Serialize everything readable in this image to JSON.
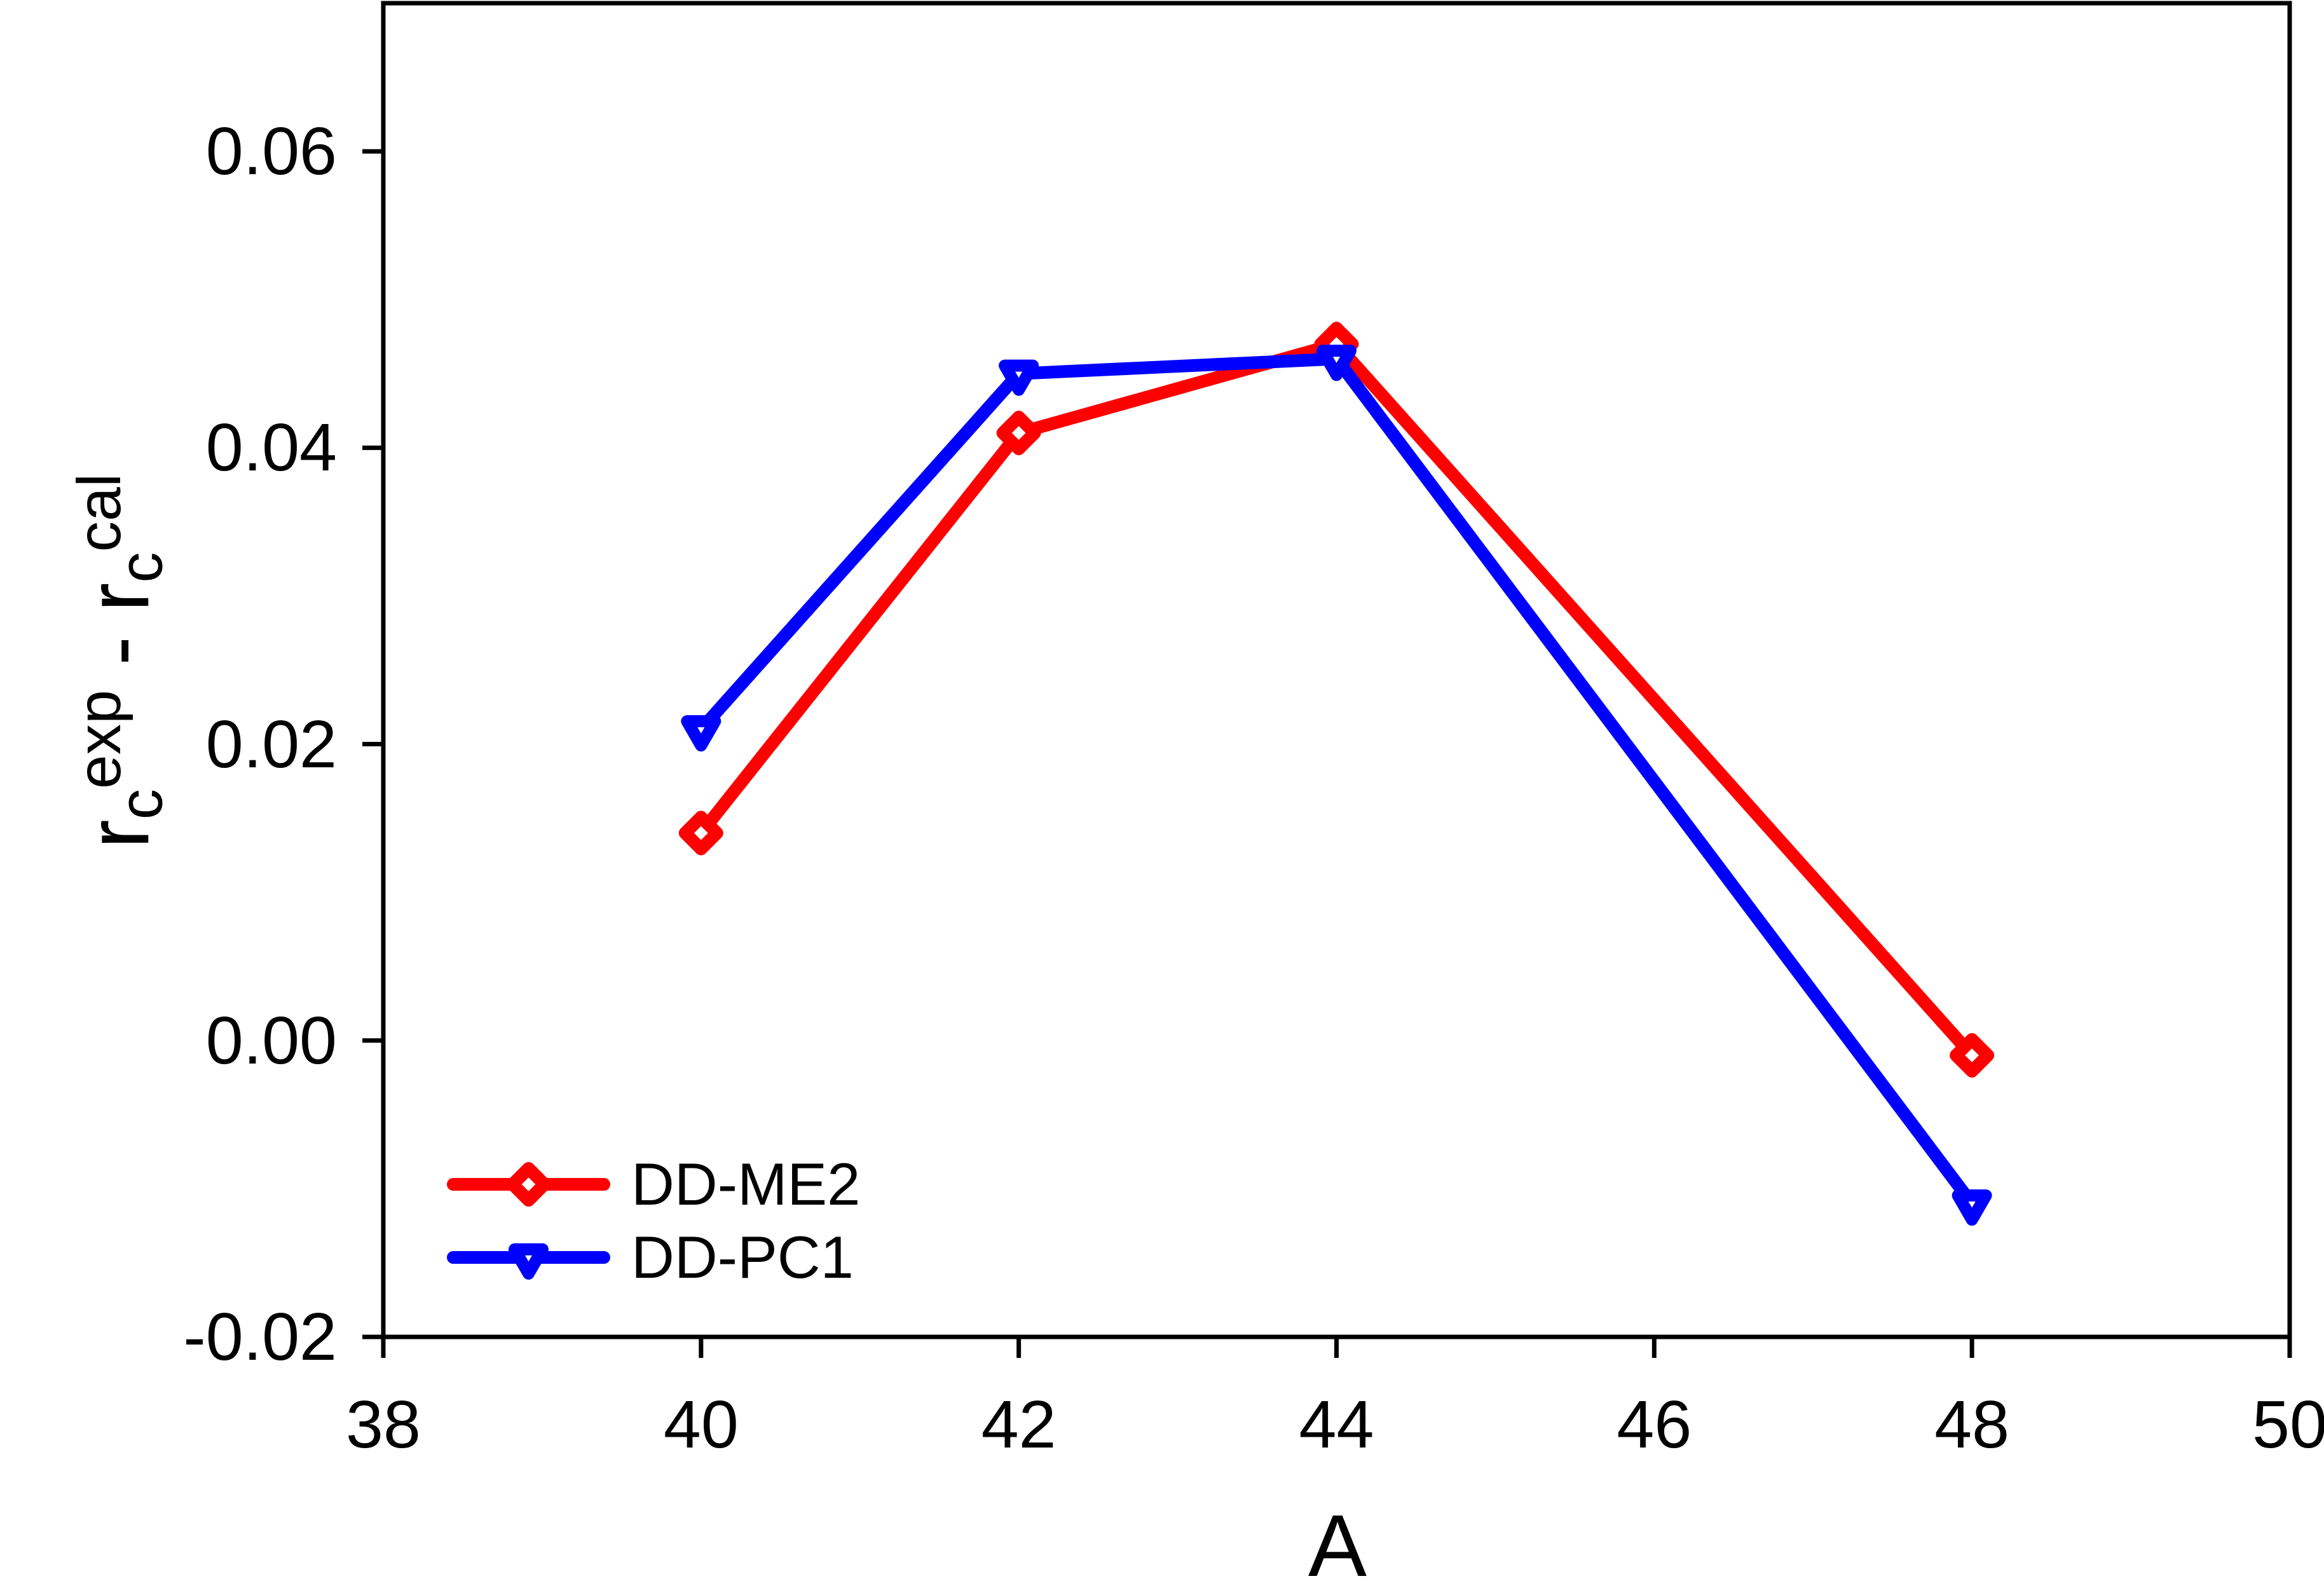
{
  "figure": {
    "background": "#ffffff",
    "axis_color": "#000000"
  },
  "chart_data": {
    "type": "line",
    "title": "",
    "xlabel": "A",
    "ylabel": "rc^exp - rc^cal",
    "ylabel_parts": {
      "base1": "r",
      "sub1": "c",
      "sup1": "exp",
      "separator": " - ",
      "base2": "r",
      "sub2": "c",
      "sup2": "cal"
    },
    "xlim": [
      38,
      50
    ],
    "ylim": [
      -0.02,
      0.07
    ],
    "x_ticks": [
      {
        "value": 38,
        "label": "38"
      },
      {
        "value": 40,
        "label": "40"
      },
      {
        "value": 42,
        "label": "42"
      },
      {
        "value": 44,
        "label": "44"
      },
      {
        "value": 46,
        "label": "46"
      },
      {
        "value": 48,
        "label": "48"
      },
      {
        "value": 50,
        "label": "50"
      }
    ],
    "y_ticks": [
      {
        "value": 0.06,
        "label": "0.06"
      },
      {
        "value": 0.04,
        "label": "0.04"
      },
      {
        "value": 0.02,
        "label": "0.02"
      },
      {
        "value": 0.0,
        "label": "0.00"
      },
      {
        "value": -0.02,
        "label": "-0.02"
      }
    ],
    "grid": false,
    "legend_position": "lower-left",
    "x": [
      40,
      42,
      44,
      48
    ],
    "series": [
      {
        "name": "DD-ME2",
        "color": "#ff0000",
        "marker": "diamond",
        "values": [
          0.014,
          0.041,
          0.047,
          -0.001
        ]
      },
      {
        "name": "DD-PC1",
        "color": "#0000ff",
        "marker": "triangle-down",
        "values": [
          0.021,
          0.045,
          0.046,
          -0.011
        ]
      }
    ]
  }
}
